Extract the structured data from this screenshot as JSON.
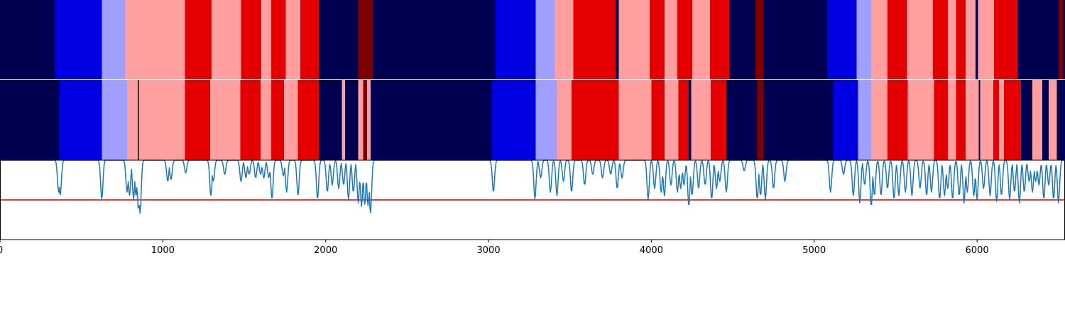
{
  "chart_data": [
    {
      "type": "heatmap",
      "title": "",
      "xlabel": "",
      "ylabel": "",
      "xlim": [
        0,
        6540
      ],
      "colors": {
        "0": "#000050",
        "1": "#0000e0",
        "2": "#9f9fff",
        "3": "#ff9f9f",
        "4": "#e50000",
        "5": "#7f0000",
        "6": "#000000"
      },
      "rows": [
        {
          "segments": [
            [
              0,
              335,
              0
            ],
            [
              335,
              625,
              1
            ],
            [
              625,
              770,
              2
            ],
            [
              770,
              1135,
              3
            ],
            [
              1135,
              1300,
              4
            ],
            [
              1300,
              1480,
              3
            ],
            [
              1480,
              1605,
              4
            ],
            [
              1605,
              1665,
              3
            ],
            [
              1665,
              1755,
              4
            ],
            [
              1755,
              1845,
              3
            ],
            [
              1845,
              1960,
              4
            ],
            [
              1960,
              2200,
              0
            ],
            [
              2200,
              2290,
              5
            ],
            [
              2290,
              3040,
              0
            ],
            [
              3040,
              3290,
              1
            ],
            [
              3290,
              3410,
              2
            ],
            [
              3410,
              3520,
              3
            ],
            [
              3520,
              3780,
              4
            ],
            [
              3780,
              3800,
              0
            ],
            [
              3800,
              3990,
              3
            ],
            [
              3990,
              4080,
              4
            ],
            [
              4080,
              4160,
              3
            ],
            [
              4160,
              4250,
              4
            ],
            [
              4250,
              4360,
              3
            ],
            [
              4360,
              4480,
              4
            ],
            [
              4480,
              4640,
              0
            ],
            [
              4640,
              4690,
              5
            ],
            [
              4690,
              5080,
              0
            ],
            [
              5080,
              5260,
              1
            ],
            [
              5260,
              5350,
              2
            ],
            [
              5350,
              5450,
              3
            ],
            [
              5450,
              5570,
              4
            ],
            [
              5570,
              5730,
              3
            ],
            [
              5730,
              5820,
              4
            ],
            [
              5820,
              5870,
              3
            ],
            [
              5870,
              5930,
              4
            ],
            [
              5930,
              5990,
              3
            ],
            [
              5990,
              6005,
              0
            ],
            [
              6005,
              6105,
              3
            ],
            [
              6105,
              6250,
              4
            ],
            [
              6250,
              6500,
              0
            ],
            [
              6500,
              6530,
              5
            ],
            [
              6530,
              6540,
              0
            ]
          ]
        },
        {
          "segments": [
            [
              0,
              365,
              0
            ],
            [
              365,
              625,
              1
            ],
            [
              625,
              780,
              2
            ],
            [
              780,
              845,
              3
            ],
            [
              845,
              852,
              6
            ],
            [
              852,
              1135,
              3
            ],
            [
              1135,
              1290,
              4
            ],
            [
              1290,
              1475,
              3
            ],
            [
              1475,
              1600,
              4
            ],
            [
              1600,
              1665,
              3
            ],
            [
              1665,
              1745,
              4
            ],
            [
              1745,
              1830,
              3
            ],
            [
              1830,
              1960,
              4
            ],
            [
              1960,
              2100,
              0
            ],
            [
              2100,
              2120,
              3
            ],
            [
              2120,
              2200,
              0
            ],
            [
              2200,
              2230,
              3
            ],
            [
              2230,
              2255,
              5
            ],
            [
              2255,
              2275,
              3
            ],
            [
              2275,
              3020,
              0
            ],
            [
              3020,
              3290,
              1
            ],
            [
              3290,
              3420,
              2
            ],
            [
              3420,
              3510,
              3
            ],
            [
              3510,
              3800,
              4
            ],
            [
              3800,
              4000,
              3
            ],
            [
              4000,
              4080,
              4
            ],
            [
              4080,
              4165,
              3
            ],
            [
              4165,
              4230,
              4
            ],
            [
              4230,
              4245,
              0
            ],
            [
              4245,
              4365,
              3
            ],
            [
              4365,
              4460,
              4
            ],
            [
              4460,
              4650,
              0
            ],
            [
              4650,
              4690,
              5
            ],
            [
              4690,
              5115,
              0
            ],
            [
              5115,
              5270,
              1
            ],
            [
              5270,
              5350,
              2
            ],
            [
              5350,
              5450,
              3
            ],
            [
              5450,
              5575,
              4
            ],
            [
              5575,
              5735,
              3
            ],
            [
              5735,
              5820,
              4
            ],
            [
              5820,
              5870,
              3
            ],
            [
              5870,
              5930,
              4
            ],
            [
              5930,
              6010,
              3
            ],
            [
              6010,
              6020,
              0
            ],
            [
              6020,
              6100,
              3
            ],
            [
              6100,
              6135,
              4
            ],
            [
              6135,
              6165,
              3
            ],
            [
              6165,
              6270,
              4
            ],
            [
              6270,
              6340,
              0
            ],
            [
              6340,
              6400,
              3
            ],
            [
              6400,
              6440,
              0
            ],
            [
              6440,
              6490,
              3
            ],
            [
              6490,
              6540,
              0
            ]
          ]
        }
      ]
    },
    {
      "type": "line",
      "title": "",
      "xlabel": "",
      "ylabel": "",
      "xlim": [
        0,
        6540
      ],
      "ylim": [
        -1.0,
        1.0
      ],
      "x_ticks": [
        0,
        1000,
        2000,
        3000,
        4000,
        5000,
        6000
      ],
      "threshold": 0.0,
      "threshold_color": "#e00000",
      "line_color": "#1f77b4",
      "baseline": 1.0,
      "dips": [
        [
          360,
          45
        ],
        [
          370,
          50
        ],
        [
          625,
          55
        ],
        [
          780,
          45
        ],
        [
          795,
          50
        ],
        [
          820,
          55
        ],
        [
          835,
          50
        ],
        [
          850,
          70
        ],
        [
          860,
          75
        ],
        [
          1030,
          30
        ],
        [
          1050,
          28
        ],
        [
          1140,
          18
        ],
        [
          1295,
          50
        ],
        [
          1310,
          30
        ],
        [
          1380,
          20
        ],
        [
          1480,
          30
        ],
        [
          1510,
          25
        ],
        [
          1530,
          20
        ],
        [
          1570,
          25
        ],
        [
          1600,
          20
        ],
        [
          1620,
          25
        ],
        [
          1650,
          25
        ],
        [
          1670,
          55
        ],
        [
          1740,
          22
        ],
        [
          1760,
          45
        ],
        [
          1830,
          50
        ],
        [
          1950,
          55
        ],
        [
          2010,
          45
        ],
        [
          2040,
          35
        ],
        [
          2080,
          40
        ],
        [
          2110,
          35
        ],
        [
          2140,
          55
        ],
        [
          2170,
          45
        ],
        [
          2200,
          60
        ],
        [
          2220,
          65
        ],
        [
          2240,
          62
        ],
        [
          2260,
          64
        ],
        [
          2275,
          75
        ],
        [
          3030,
          45
        ],
        [
          3285,
          55
        ],
        [
          3320,
          25
        ],
        [
          3380,
          45
        ],
        [
          3420,
          50
        ],
        [
          3460,
          30
        ],
        [
          3510,
          45
        ],
        [
          3590,
          35
        ],
        [
          3640,
          20
        ],
        [
          3700,
          25
        ],
        [
          3750,
          20
        ],
        [
          3790,
          40
        ],
        [
          3820,
          25
        ],
        [
          3980,
          55
        ],
        [
          4020,
          40
        ],
        [
          4060,
          45
        ],
        [
          4080,
          50
        ],
        [
          4120,
          35
        ],
        [
          4160,
          45
        ],
        [
          4180,
          40
        ],
        [
          4200,
          35
        ],
        [
          4230,
          65
        ],
        [
          4250,
          50
        ],
        [
          4290,
          40
        ],
        [
          4330,
          35
        ],
        [
          4370,
          55
        ],
        [
          4400,
          40
        ],
        [
          4420,
          30
        ],
        [
          4460,
          45
        ],
        [
          4570,
          15
        ],
        [
          4650,
          55
        ],
        [
          4670,
          50
        ],
        [
          4700,
          55
        ],
        [
          4750,
          40
        ],
        [
          4820,
          30
        ],
        [
          5100,
          45
        ],
        [
          5180,
          20
        ],
        [
          5240,
          50
        ],
        [
          5280,
          60
        ],
        [
          5310,
          35
        ],
        [
          5350,
          65
        ],
        [
          5370,
          50
        ],
        [
          5410,
          50
        ],
        [
          5450,
          40
        ],
        [
          5490,
          55
        ],
        [
          5520,
          50
        ],
        [
          5560,
          45
        ],
        [
          5600,
          50
        ],
        [
          5650,
          40
        ],
        [
          5690,
          50
        ],
        [
          5720,
          45
        ],
        [
          5770,
          55
        ],
        [
          5800,
          50
        ],
        [
          5820,
          40
        ],
        [
          5850,
          55
        ],
        [
          5890,
          50
        ],
        [
          5920,
          60
        ],
        [
          5940,
          45
        ],
        [
          5980,
          50
        ],
        [
          6000,
          55
        ],
        [
          6040,
          40
        ],
        [
          6080,
          50
        ],
        [
          6120,
          58
        ],
        [
          6150,
          50
        ],
        [
          6200,
          55
        ],
        [
          6230,
          45
        ],
        [
          6260,
          60
        ],
        [
          6290,
          45
        ],
        [
          6320,
          30
        ],
        [
          6340,
          45
        ],
        [
          6360,
          30
        ],
        [
          6380,
          35
        ],
        [
          6410,
          55
        ],
        [
          6440,
          35
        ],
        [
          6470,
          55
        ],
        [
          6500,
          60
        ]
      ]
    }
  ]
}
